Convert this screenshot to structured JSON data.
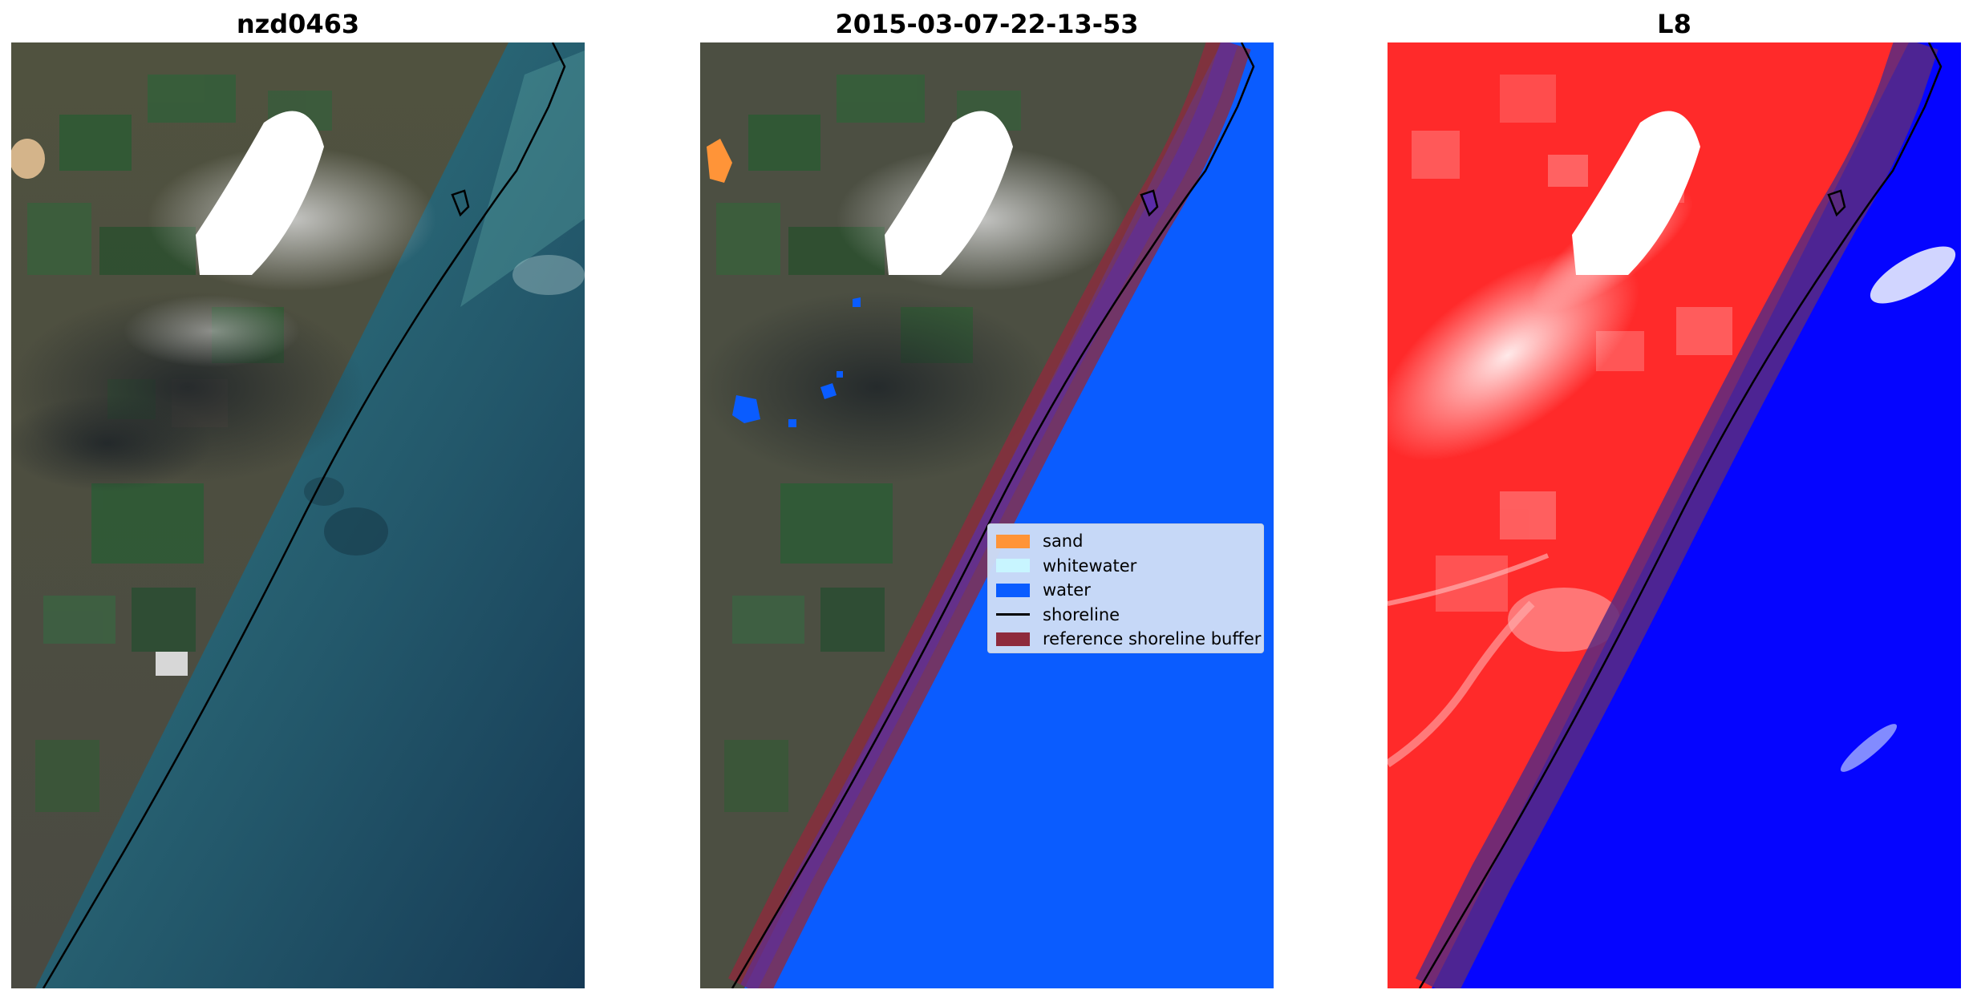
{
  "panels": [
    {
      "title": "nzd0463"
    },
    {
      "title": "2015-03-07-22-13-53"
    },
    {
      "title": "L8"
    }
  ],
  "legend": {
    "items": [
      {
        "label": "sand",
        "color": "#ff9438",
        "kind": "patch"
      },
      {
        "label": "whitewater",
        "color": "#c8f5ff",
        "kind": "patch"
      },
      {
        "label": "water",
        "color": "#0a5cff",
        "kind": "patch"
      },
      {
        "label": "shoreline",
        "color": "#000000",
        "kind": "line"
      },
      {
        "label": "reference shoreline buffer",
        "color": "#8e2a3c",
        "kind": "patch"
      }
    ]
  },
  "colors": {
    "land_rgb": "#4c4f42",
    "sea_rgb": "#1f4f5e",
    "cloud_mask": "#ffffff",
    "water_class": "#0a5cff",
    "sand_class": "#ff9438",
    "buffer": "#8e2a3c",
    "l8_land": "#ff2020",
    "l8_water": "#0505ff",
    "shoreline": "#000000"
  }
}
